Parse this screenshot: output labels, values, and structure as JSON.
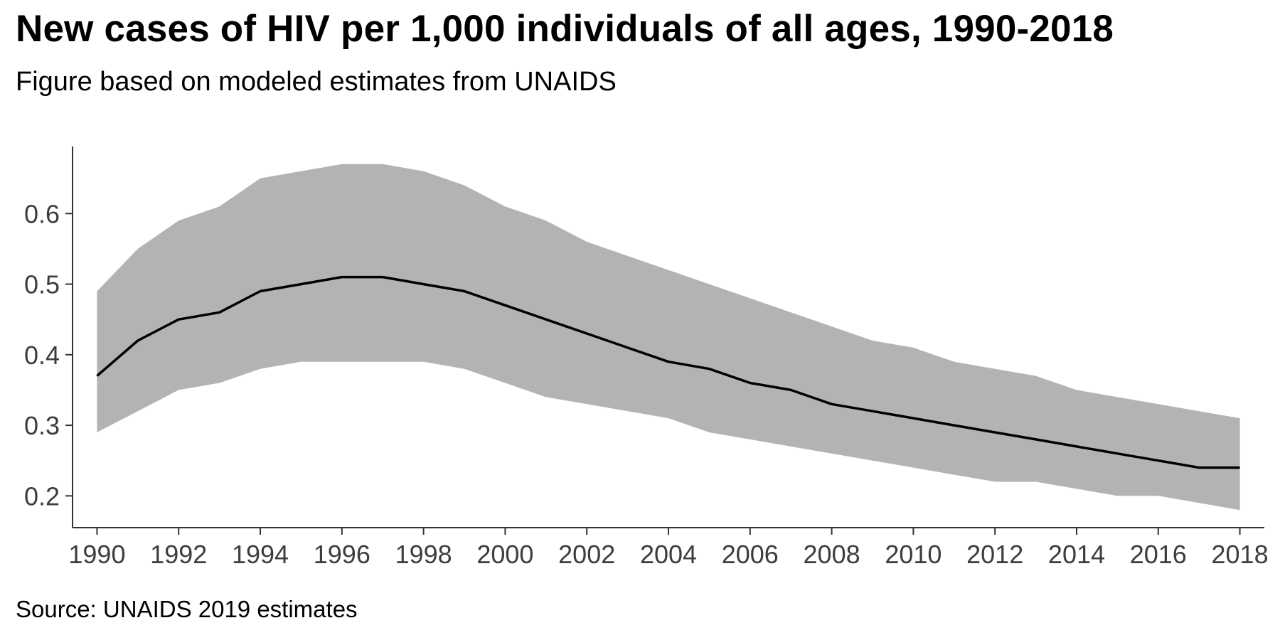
{
  "chart_data": {
    "type": "area",
    "title": "New cases of HIV per 1,000 individuals of all ages, 1990-2018",
    "subtitle": "Figure based on modeled estimates from UNAIDS",
    "caption": "Source: UNAIDS 2019 estimates",
    "xlabel": "",
    "ylabel": "",
    "x": [
      1990,
      1991,
      1992,
      1993,
      1994,
      1995,
      1996,
      1997,
      1998,
      1999,
      2000,
      2001,
      2002,
      2003,
      2004,
      2005,
      2006,
      2007,
      2008,
      2009,
      2010,
      2011,
      2012,
      2013,
      2014,
      2015,
      2016,
      2017,
      2018
    ],
    "series": [
      {
        "values": [
          0.37,
          0.42,
          0.45,
          0.46,
          0.49,
          0.5,
          0.51,
          0.51,
          0.5,
          0.49,
          0.47,
          0.45,
          0.43,
          0.41,
          0.39,
          0.38,
          0.36,
          0.35,
          0.33,
          0.32,
          0.31,
          0.3,
          0.29,
          0.28,
          0.27,
          0.26,
          0.25,
          0.24,
          0.24
        ],
        "lower": [
          0.29,
          0.32,
          0.35,
          0.36,
          0.38,
          0.39,
          0.39,
          0.39,
          0.39,
          0.38,
          0.36,
          0.34,
          0.33,
          0.32,
          0.31,
          0.29,
          0.28,
          0.27,
          0.26,
          0.25,
          0.24,
          0.23,
          0.22,
          0.22,
          0.21,
          0.2,
          0.2,
          0.19,
          0.18
        ],
        "upper": [
          0.49,
          0.55,
          0.59,
          0.61,
          0.65,
          0.66,
          0.67,
          0.67,
          0.66,
          0.64,
          0.61,
          0.59,
          0.56,
          0.54,
          0.52,
          0.5,
          0.48,
          0.46,
          0.44,
          0.42,
          0.41,
          0.39,
          0.38,
          0.37,
          0.35,
          0.34,
          0.33,
          0.32,
          0.31
        ]
      }
    ],
    "xlim": [
      1989.4,
      2018.6
    ],
    "ylim": [
      0.155,
      0.695
    ],
    "x_ticks": [
      1990,
      1992,
      1994,
      1996,
      1998,
      2000,
      2002,
      2004,
      2006,
      2008,
      2010,
      2012,
      2014,
      2016,
      2018
    ],
    "y_ticks": [
      0.2,
      0.3,
      0.4,
      0.5,
      0.6
    ],
    "grid": false,
    "legend": "none",
    "colors": {
      "line": "#000000",
      "band": "#b3b3b3",
      "axis": "#333333",
      "tick_text": "#3d3d3d"
    }
  }
}
